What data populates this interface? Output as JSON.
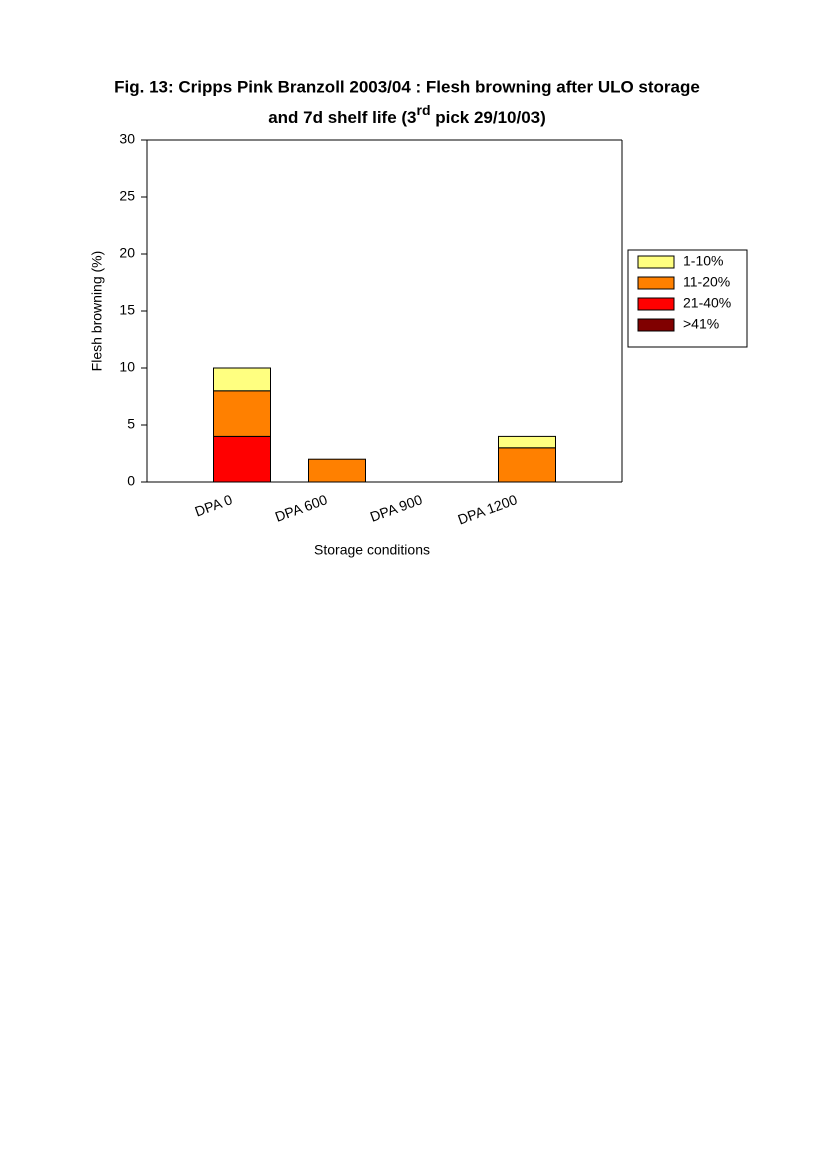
{
  "chart_data": {
    "type": "stacked_bar",
    "title": {
      "line1": "Fig. 13: Cripps Pink Branzoll 2003/04 : Flesh browning after ULO storage",
      "line2_before": "and 7d shelf life (3",
      "superscript": "rd",
      "line2_after": " pick 29/10/03)"
    },
    "x_label": "Storage conditions",
    "y_label": "Flesh browning (%)",
    "categories": [
      "DPA 0",
      "DPA 600",
      "DPA 900",
      "DPA 1200"
    ],
    "series": [
      {
        "name": ">41%",
        "color": "#800000",
        "values": [
          0,
          0,
          0,
          0
        ]
      },
      {
        "name": "21-40%",
        "color": "#ff0000",
        "values": [
          4,
          0,
          0,
          0
        ]
      },
      {
        "name": "11-20%",
        "color": "#ff8000",
        "values": [
          4,
          2,
          0,
          3
        ]
      },
      {
        "name": "1-10%",
        "color": "#ffff80",
        "values": [
          2,
          0,
          0,
          1
        ]
      }
    ],
    "ylim": [
      0,
      30
    ],
    "yticks": [
      0,
      5,
      10,
      15,
      20,
      25,
      30
    ],
    "legend": "right"
  }
}
